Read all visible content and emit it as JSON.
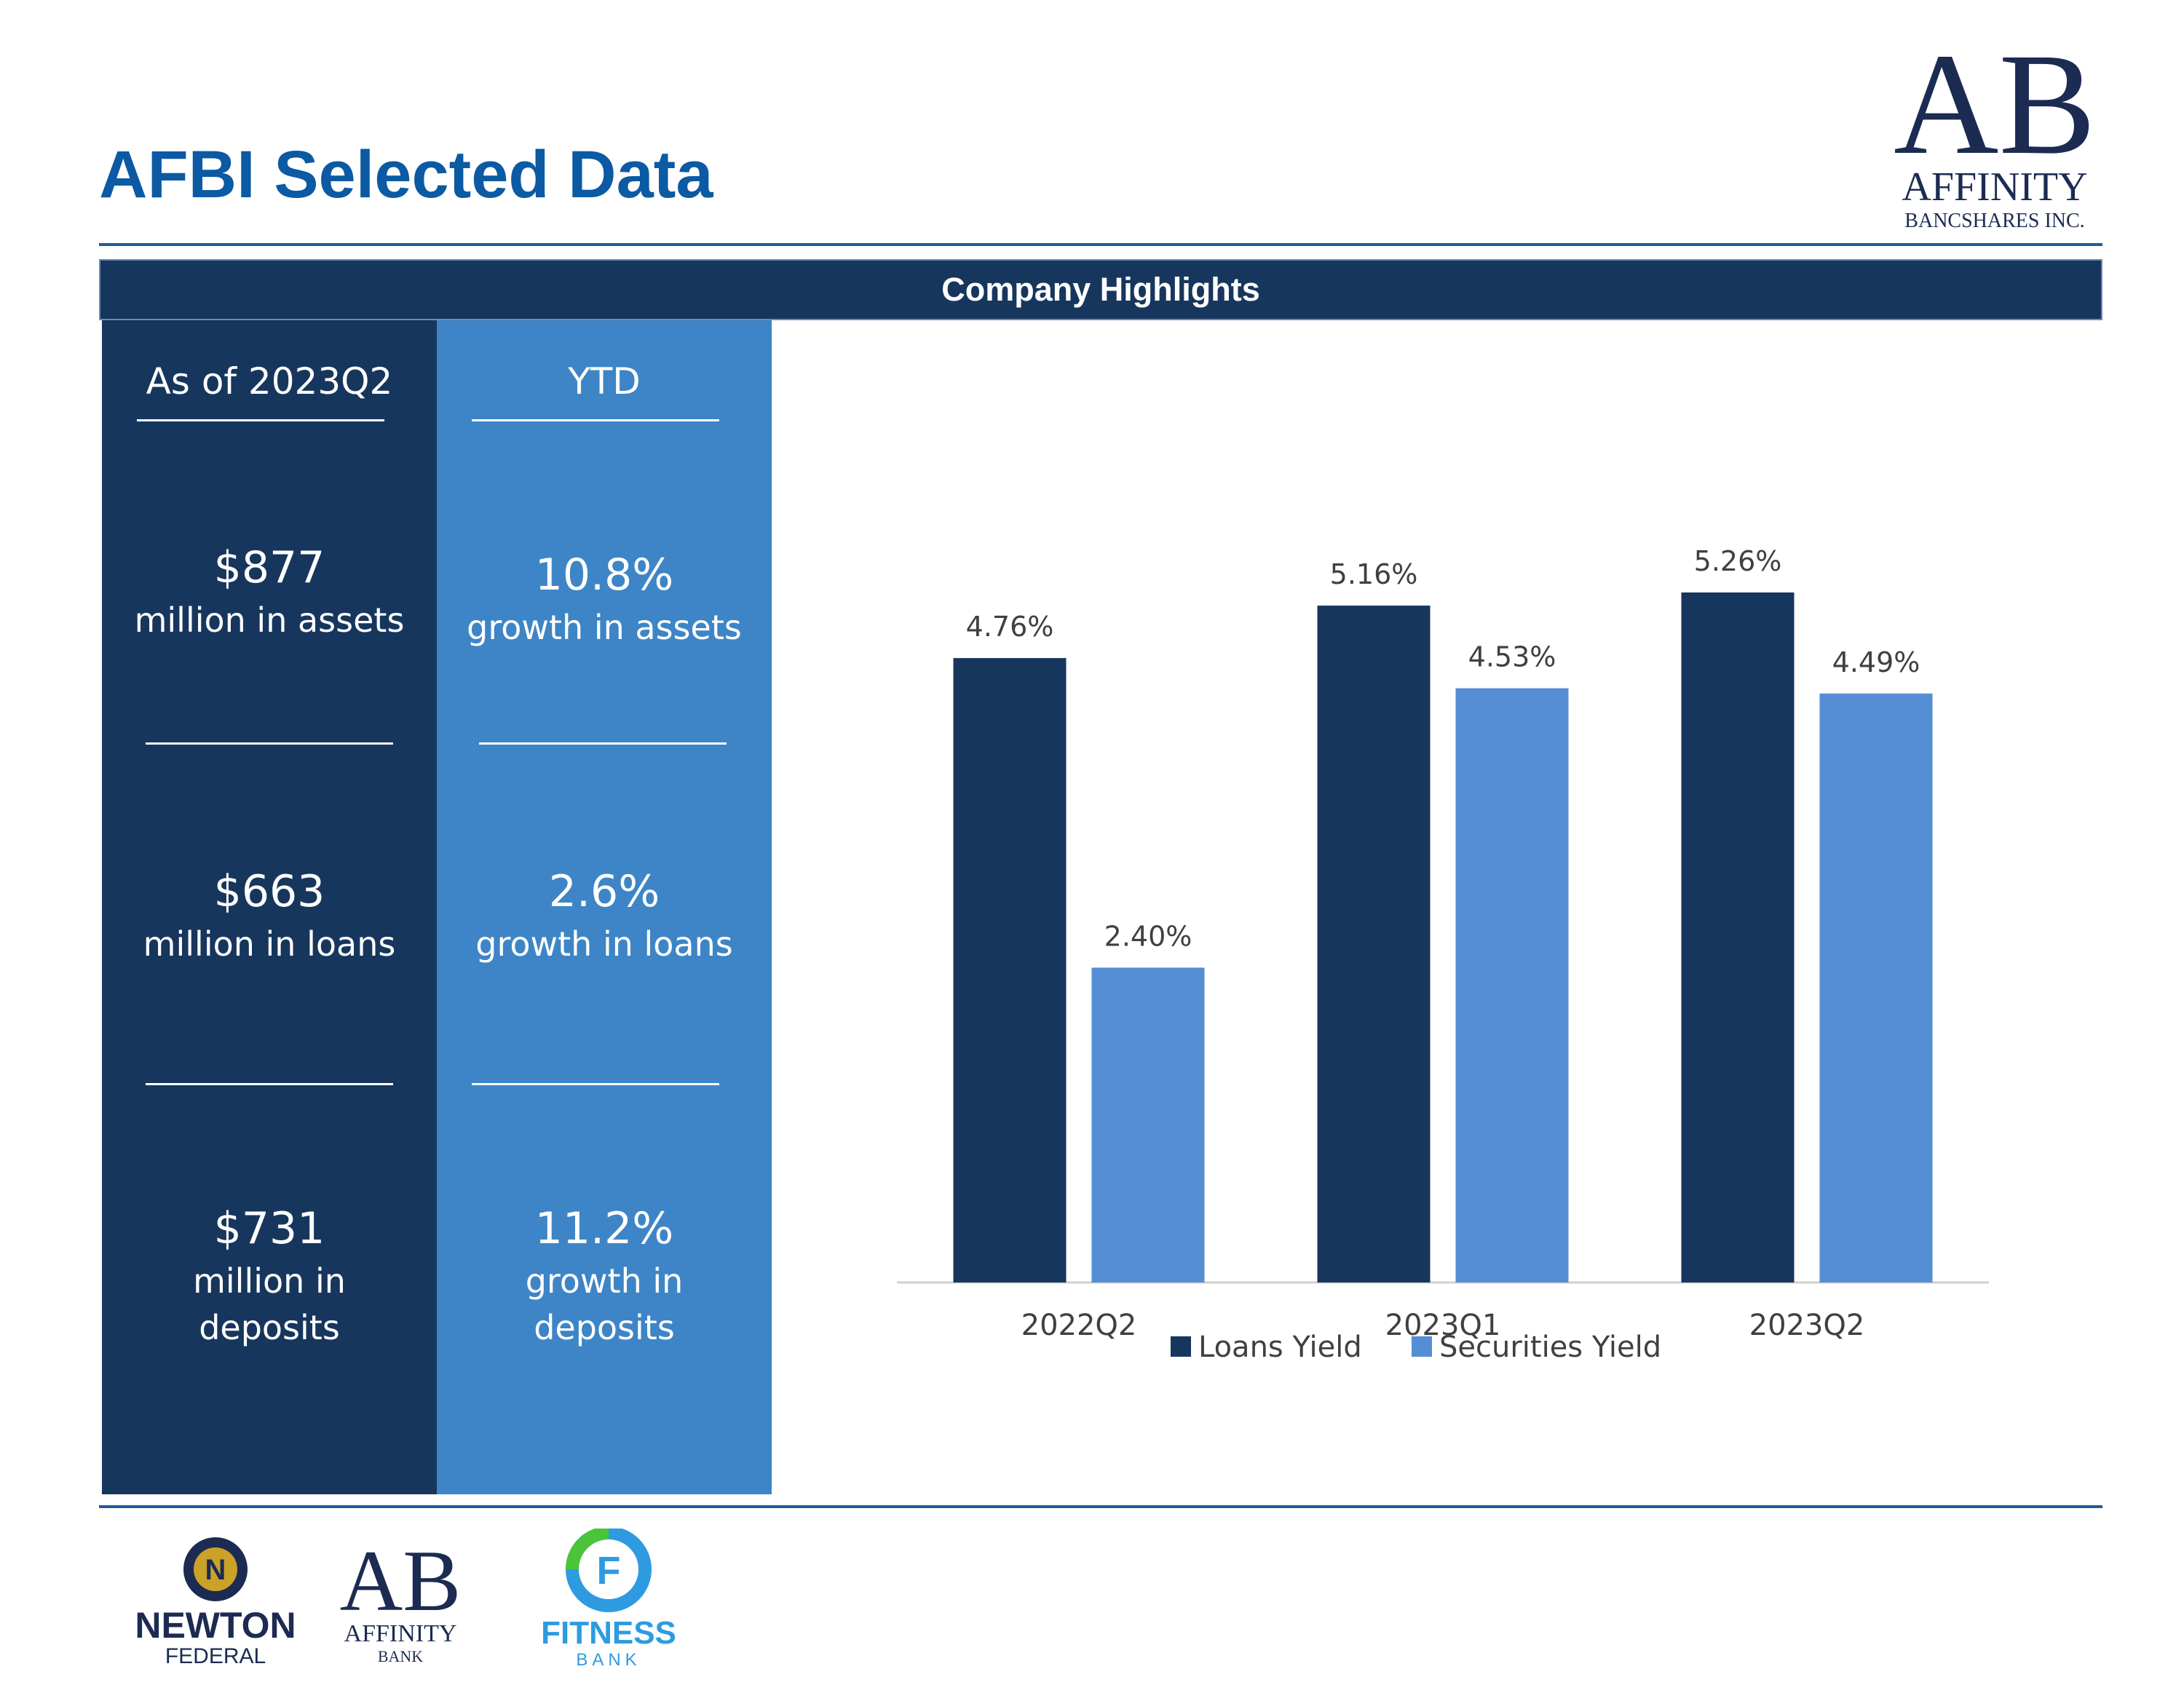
{
  "page": {
    "title": "AFBI Selected Data"
  },
  "brand": {
    "logo_letters": "AB",
    "logo_name": "AFFINITY",
    "logo_sub": "BANCSHARES INC.",
    "colors": {
      "navy": "#17365d",
      "light_blue": "#3d85c6",
      "title_blue": "#0b5aa3",
      "series_light": "#558ed5"
    }
  },
  "section": {
    "title": "Company Highlights"
  },
  "left_column": {
    "header": "As of 2023Q2",
    "stats": [
      {
        "value": "$877",
        "label": "million in assets"
      },
      {
        "value": "$663",
        "label": "million in loans"
      },
      {
        "value": "$731",
        "label": "million in",
        "label2": "deposits"
      }
    ]
  },
  "right_column": {
    "header": "YTD",
    "stats": [
      {
        "value": "10.8%",
        "label": "growth in assets"
      },
      {
        "value": "2.6%",
        "label": "growth in loans"
      },
      {
        "value": "11.2%",
        "label": "growth in",
        "label2": "deposits"
      }
    ]
  },
  "chart_data": {
    "type": "bar",
    "title": "",
    "categories": [
      "2022Q2",
      "2023Q1",
      "2023Q2"
    ],
    "series": [
      {
        "name": "Loans Yield",
        "values": [
          4.76,
          5.16,
          5.26
        ],
        "labels": [
          "4.76%",
          "5.16%",
          "5.26%"
        ],
        "color": "#17365d"
      },
      {
        "name": "Securities Yield",
        "values": [
          2.4,
          4.53,
          4.49
        ],
        "labels": [
          "2.40%",
          "4.53%",
          "4.49%"
        ],
        "color": "#558ed5"
      }
    ],
    "ylim": [
      0,
      5.26
    ],
    "grid": false,
    "legend": "bottom",
    "xlabel": "",
    "ylabel": ""
  },
  "footer": {
    "logos": [
      {
        "name": "NEWTON",
        "sub": "FEDERAL",
        "icon": "N"
      },
      {
        "name": "AFFINITY",
        "sub": "BANK",
        "icon": "AB"
      },
      {
        "name": "FITNESS",
        "sub": "BANK",
        "icon": "F"
      }
    ]
  }
}
